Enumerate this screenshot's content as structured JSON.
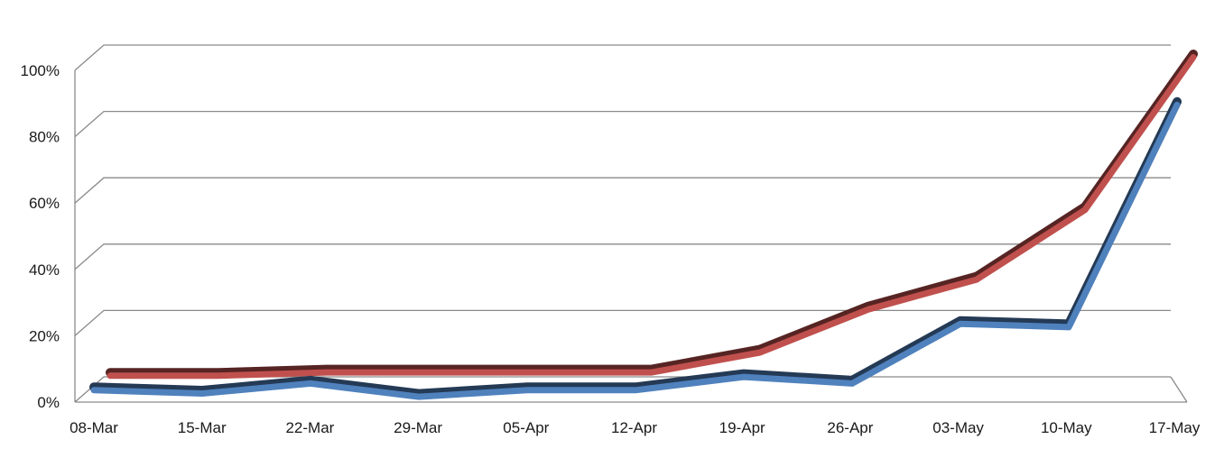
{
  "chart_data": {
    "type": "line",
    "style": "3d-line",
    "categories": [
      "08-Mar",
      "15-Mar",
      "22-Mar",
      "29-Mar",
      "05-Apr",
      "12-Apr",
      "19-Apr",
      "26-Apr",
      "03-May",
      "10-May",
      "17-May"
    ],
    "y_ticks": [
      "0%",
      "20%",
      "40%",
      "60%",
      "80%",
      "100%"
    ],
    "ylim": [
      0,
      100
    ],
    "grid": true,
    "legend": "none",
    "series": [
      {
        "color": "#c0504d",
        "values": [
          4,
          4,
          5,
          5,
          5,
          5,
          11,
          24,
          33,
          54,
          100
        ]
      },
      {
        "color": "#4f81bd",
        "values": [
          4,
          3,
          6,
          2,
          4,
          4,
          8,
          6,
          24,
          23,
          90
        ]
      }
    ],
    "title": "",
    "xlabel": "",
    "ylabel": ""
  }
}
